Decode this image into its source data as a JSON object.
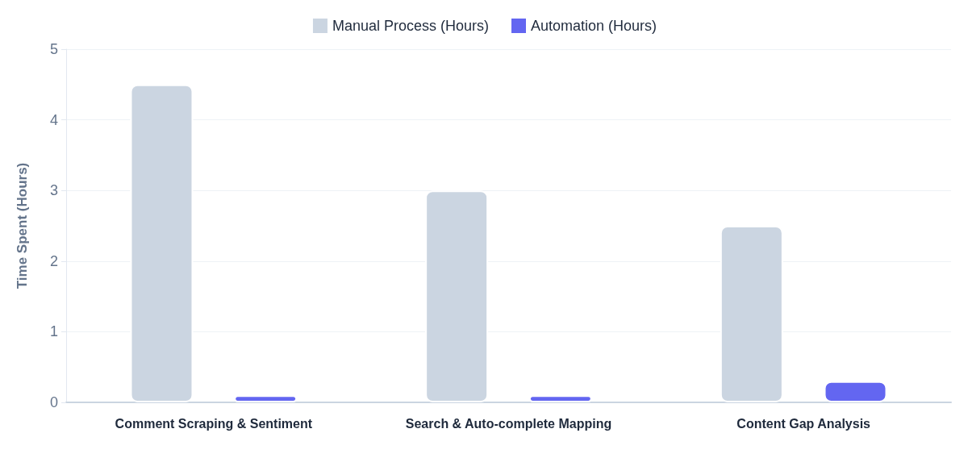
{
  "chart_data": {
    "type": "bar",
    "ylabel": "Time Spent (Hours)",
    "categories": [
      "Comment Scraping & Sentiment",
      "Search & Auto-complete Mapping",
      "Content Gap Analysis"
    ],
    "series": [
      {
        "name": "Manual Process (Hours)",
        "color": "#cbd5e1",
        "values": [
          4.5,
          3,
          2.5
        ]
      },
      {
        "name": "Automation (Hours)",
        "color": "#6366f1",
        "values": [
          0.1,
          0.1,
          0.3
        ]
      }
    ],
    "ylim": [
      0,
      5
    ],
    "yticks": [
      0,
      1,
      2,
      3,
      4,
      5
    ],
    "grid": "y",
    "legend": "top"
  }
}
